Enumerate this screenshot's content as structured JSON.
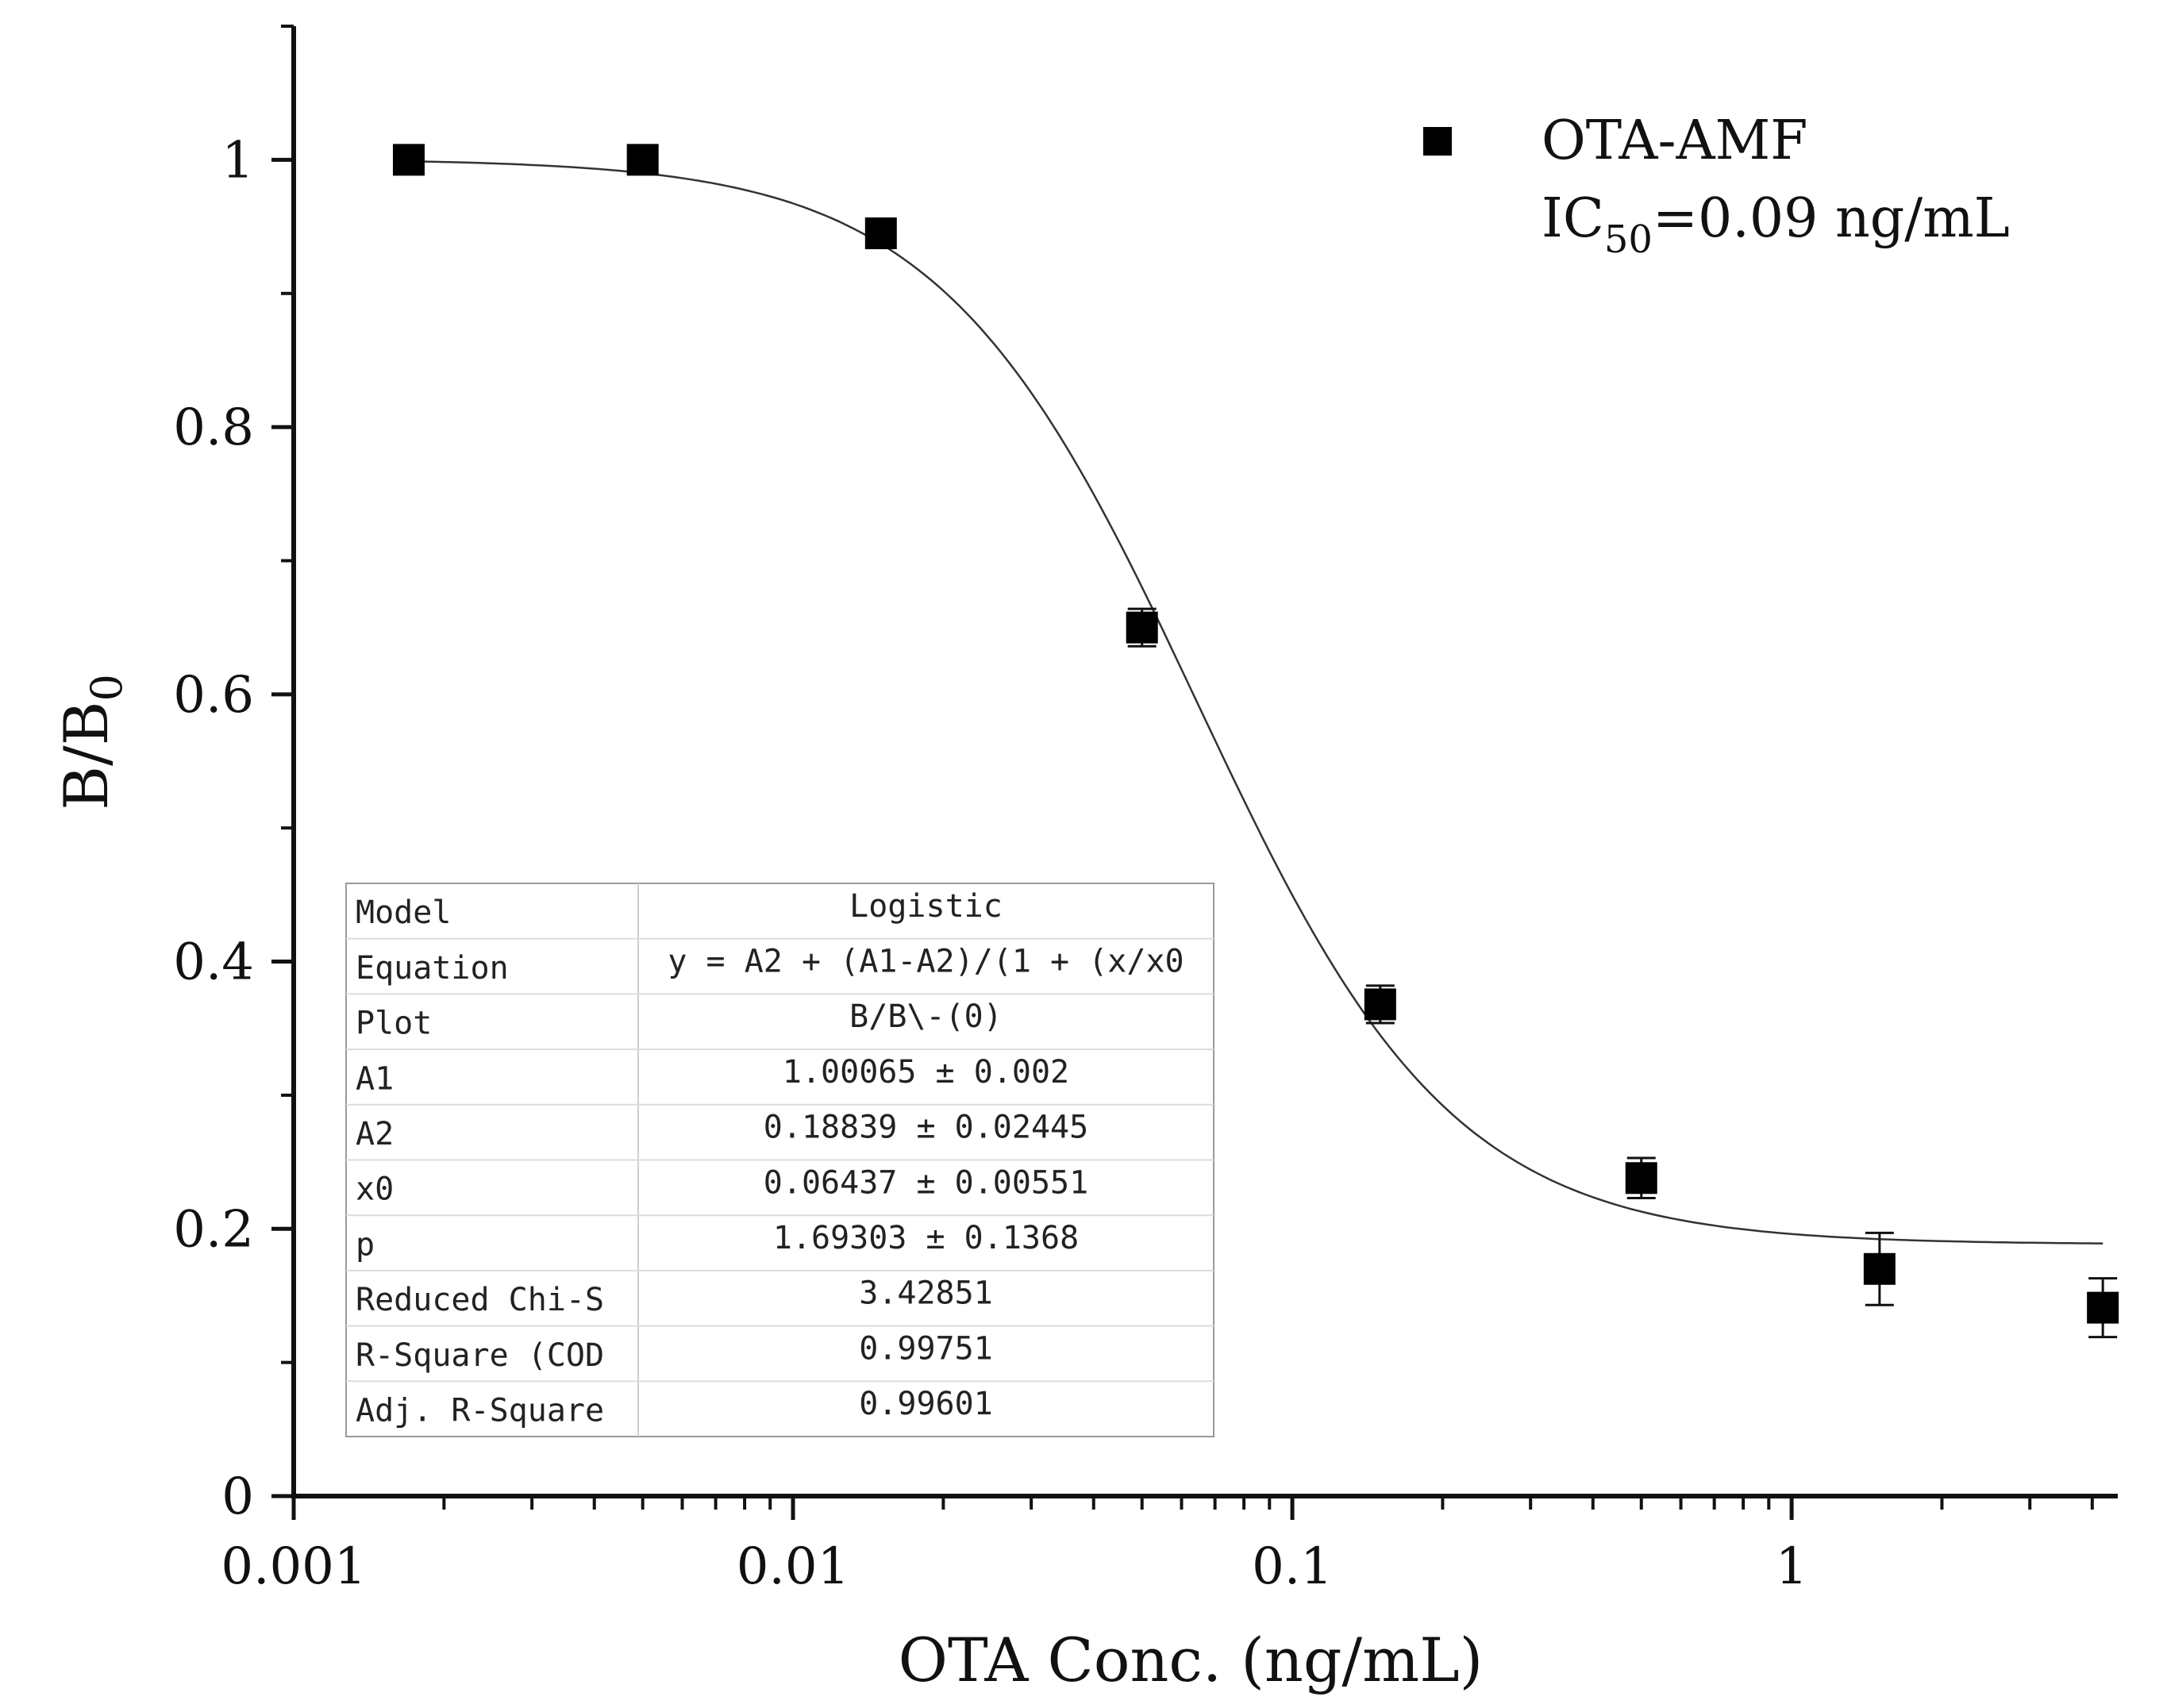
{
  "chart_data": {
    "type": "scatter",
    "title": "",
    "xlabel": "OTA Conc.  (ng/mL)",
    "ylabel": "B/B0",
    "ylabel_parts": {
      "base": "B/B",
      "sub": "0"
    },
    "xscale": "log",
    "xlim": [
      0.001,
      4.5
    ],
    "ylim": [
      0,
      1.1
    ],
    "x_ticks": [
      0.001,
      0.01,
      0.1,
      1
    ],
    "x_tick_labels": [
      "0.001",
      "0.01",
      "0.1",
      "1"
    ],
    "y_ticks": [
      0,
      0.2,
      0.4,
      0.6,
      0.8,
      1
    ],
    "y_tick_labels": [
      "0",
      "0.2",
      "0.4",
      "0.6",
      "0.8",
      "1"
    ],
    "grid": false,
    "series": [
      {
        "name": "OTA-AMF",
        "marker": "square",
        "color": "#000000",
        "x": [
          0.0017,
          0.005,
          0.015,
          0.05,
          0.15,
          0.5,
          1.5,
          4.2
        ],
        "y": [
          1.0,
          1.0,
          0.945,
          0.65,
          0.368,
          0.238,
          0.17,
          0.141
        ],
        "err": [
          0.006,
          0.006,
          0.008,
          0.014,
          0.014,
          0.015,
          0.027,
          0.022
        ]
      }
    ],
    "fit": {
      "model": "logistic",
      "A1": 1.00065,
      "A2": 0.18839,
      "x0": 0.06437,
      "p": 1.69303,
      "x_range": [
        0.0017,
        4.2
      ],
      "color": "#333333"
    },
    "legend": {
      "label": "OTA-AMF",
      "ic50_prefix": "IC",
      "ic50_sub": "50",
      "ic50_value": "=0.09 ng/mL",
      "placement": "top-right"
    },
    "fit_table": {
      "rows": [
        [
          "Model",
          "Logistic"
        ],
        [
          "Equation",
          "y = A2 + (A1-A2)/(1 + (x/x0"
        ],
        [
          "Plot",
          "B/B\\-(0)"
        ],
        [
          "A1",
          "1.00065 ± 0.002"
        ],
        [
          "A2",
          "0.18839 ± 0.02445"
        ],
        [
          "x0",
          "0.06437 ± 0.00551"
        ],
        [
          "p",
          "1.69303 ± 0.1368"
        ],
        [
          "Reduced Chi-S",
          "3.42851"
        ],
        [
          "R-Square (COD",
          "0.99751"
        ],
        [
          "Adj. R-Square",
          "0.99601"
        ]
      ],
      "placement": "lower-left"
    }
  }
}
